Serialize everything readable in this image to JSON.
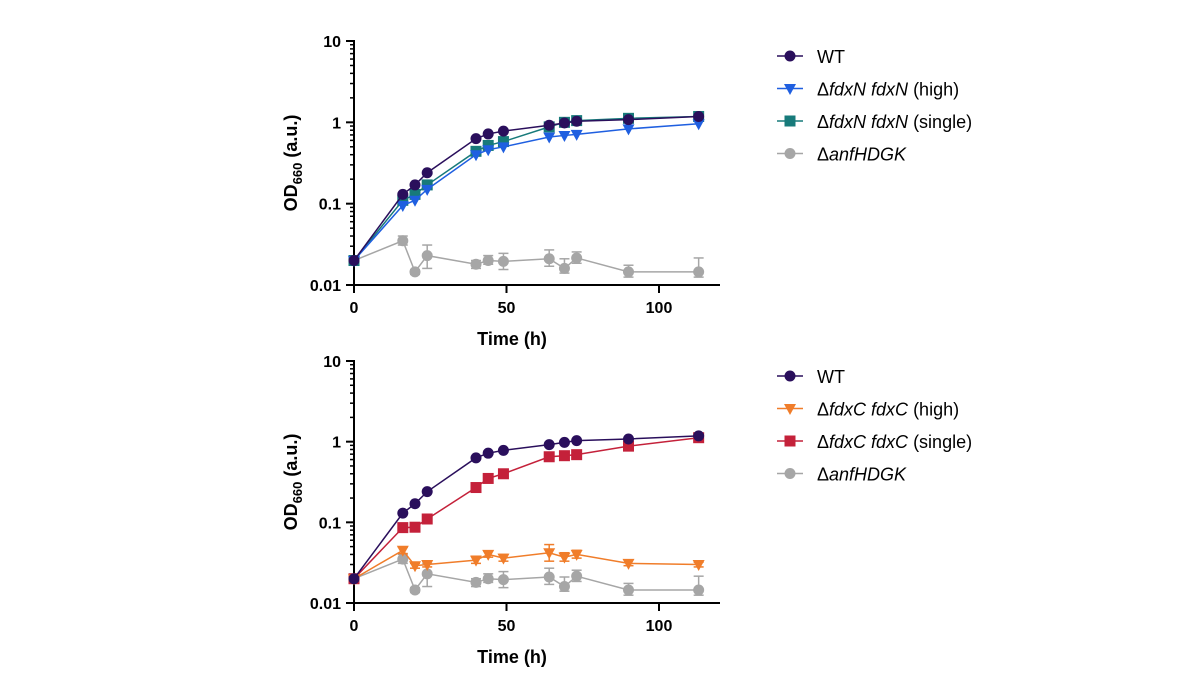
{
  "chart_data": [
    {
      "type": "line",
      "xlabel": "Time (h)",
      "ylabel": {
        "main": "OD",
        "sub": "660",
        "suffix": " (a.u.)"
      },
      "xscale": "linear",
      "yscale": "log",
      "xlim": [
        0,
        120
      ],
      "ylim": [
        0.01,
        10
      ],
      "xticks": [
        0,
        50,
        100
      ],
      "yticks": [
        0.01,
        0.1,
        1,
        10
      ],
      "ytick_labels": [
        "0.01",
        "0.1",
        "1",
        "10"
      ],
      "legend_position": "right",
      "series": [
        {
          "name": "WT",
          "legend": [
            {
              "text": "WT",
              "italic": false
            }
          ],
          "color": "#2a0f5c",
          "marker": "circle",
          "x": [
            0,
            16,
            20,
            24,
            40,
            44,
            49,
            64,
            69,
            73,
            90,
            113
          ],
          "y": [
            0.02,
            0.13,
            0.17,
            0.24,
            0.63,
            0.72,
            0.78,
            0.92,
            0.98,
            1.03,
            1.08,
            1.18
          ],
          "err": []
        },
        {
          "name": "ΔfdxN fdxN (high)",
          "legend": [
            {
              "text": "Δ",
              "italic": false
            },
            {
              "text": "fdxN fdxN",
              "italic": true
            },
            {
              "text": " (high)",
              "italic": false
            }
          ],
          "color": "#1f5fe0",
          "marker": "triangle-down",
          "x": [
            0,
            16,
            20,
            24,
            40,
            44,
            49,
            64,
            69,
            73,
            90,
            113
          ],
          "y": [
            0.02,
            0.095,
            0.11,
            0.15,
            0.4,
            0.46,
            0.5,
            0.66,
            0.69,
            0.71,
            0.83,
            0.96
          ],
          "err": []
        },
        {
          "name": "ΔfdxN fdxN (single)",
          "legend": [
            {
              "text": "Δ",
              "italic": false
            },
            {
              "text": "fdxN fdxN",
              "italic": true
            },
            {
              "text": " (single)",
              "italic": false
            }
          ],
          "color": "#177a7a",
          "marker": "square",
          "x": [
            0,
            16,
            20,
            24,
            40,
            44,
            49,
            64,
            69,
            73,
            90,
            113
          ],
          "y": [
            0.02,
            0.11,
            0.13,
            0.17,
            0.44,
            0.52,
            0.58,
            0.88,
            1.0,
            1.05,
            1.12,
            1.18
          ],
          "err": []
        },
        {
          "name": "ΔanfHDGK",
          "legend": [
            {
              "text": "Δ",
              "italic": false
            },
            {
              "text": "anfHDGK",
              "italic": true
            }
          ],
          "color": "#a6a6a6",
          "marker": "circle",
          "x": [
            0,
            16,
            20,
            24,
            40,
            44,
            49,
            64,
            69,
            73,
            90,
            113
          ],
          "y": [
            0.02,
            0.035,
            0.0145,
            0.023,
            0.018,
            0.02,
            0.0195,
            0.021,
            0.016,
            0.0215,
            0.0145,
            0.0145
          ],
          "err": [
            [
              0,
              0
            ],
            [
              0.004,
              0.005
            ],
            [
              0.001,
              0.001
            ],
            [
              0.007,
              0.008
            ],
            [
              0.002,
              0.002
            ],
            [
              0.002,
              0.003
            ],
            [
              0.004,
              0.005
            ],
            [
              0.004,
              0.006
            ],
            [
              0.002,
              0.005
            ],
            [
              0.003,
              0.004
            ],
            [
              0.002,
              0.003
            ],
            [
              0.002,
              0.007
            ]
          ]
        }
      ]
    },
    {
      "type": "line",
      "xlabel": "Time (h)",
      "ylabel": {
        "main": "OD",
        "sub": "660",
        "suffix": " (a.u.)"
      },
      "xscale": "linear",
      "yscale": "log",
      "xlim": [
        0,
        120
      ],
      "ylim": [
        0.01,
        10
      ],
      "xticks": [
        0,
        50,
        100
      ],
      "yticks": [
        0.01,
        0.1,
        1,
        10
      ],
      "ytick_labels": [
        "0.01",
        "0.1",
        "1",
        "10"
      ],
      "legend_position": "right",
      "series": [
        {
          "name": "WT",
          "legend": [
            {
              "text": "WT",
              "italic": false
            }
          ],
          "color": "#2a0f5c",
          "marker": "circle",
          "x": [
            0,
            16,
            20,
            24,
            40,
            44,
            49,
            64,
            69,
            73,
            90,
            113
          ],
          "y": [
            0.02,
            0.13,
            0.17,
            0.24,
            0.63,
            0.72,
            0.78,
            0.92,
            0.98,
            1.03,
            1.08,
            1.18
          ],
          "err": []
        },
        {
          "name": "ΔfdxC fdxC (high)",
          "legend": [
            {
              "text": "Δ",
              "italic": false
            },
            {
              "text": "fdxC fdxC",
              "italic": true
            },
            {
              "text": " (high)",
              "italic": false
            }
          ],
          "color": "#f07d2a",
          "marker": "triangle-down",
          "x": [
            0,
            16,
            20,
            24,
            40,
            44,
            49,
            64,
            69,
            73,
            90,
            113
          ],
          "y": [
            0.02,
            0.045,
            0.029,
            0.03,
            0.034,
            0.04,
            0.036,
            0.042,
            0.037,
            0.04,
            0.031,
            0.03
          ],
          "err": [
            [
              0,
              0
            ],
            [
              0.004,
              0.004
            ],
            [
              0.002,
              0.002
            ],
            [
              0.002,
              0.003
            ],
            [
              0.003,
              0.004
            ],
            [
              0.003,
              0.004
            ],
            [
              0.003,
              0.004
            ],
            [
              0.009,
              0.011
            ],
            [
              0.004,
              0.005
            ],
            [
              0.004,
              0.005
            ],
            [
              0.002,
              0.003
            ],
            [
              0.002,
              0.002
            ]
          ]
        },
        {
          "name": "ΔfdxC fdxC (single)",
          "legend": [
            {
              "text": "Δ",
              "italic": false
            },
            {
              "text": "fdxC fdxC",
              "italic": true
            },
            {
              "text": " (single)",
              "italic": false
            }
          ],
          "color": "#c4213a",
          "marker": "square",
          "x": [
            0,
            16,
            20,
            24,
            40,
            44,
            49,
            64,
            69,
            73,
            90,
            113
          ],
          "y": [
            0.02,
            0.086,
            0.087,
            0.11,
            0.27,
            0.35,
            0.4,
            0.65,
            0.67,
            0.69,
            0.88,
            1.12
          ],
          "err": []
        },
        {
          "name": "ΔanfHDGK",
          "legend": [
            {
              "text": "Δ",
              "italic": false
            },
            {
              "text": "anfHDGK",
              "italic": true
            }
          ],
          "color": "#a6a6a6",
          "marker": "circle",
          "x": [
            0,
            16,
            20,
            24,
            40,
            44,
            49,
            64,
            69,
            73,
            90,
            113
          ],
          "y": [
            0.02,
            0.035,
            0.0145,
            0.023,
            0.018,
            0.02,
            0.0195,
            0.021,
            0.016,
            0.0215,
            0.0145,
            0.0145
          ],
          "err": [
            [
              0,
              0
            ],
            [
              0.004,
              0.005
            ],
            [
              0.001,
              0.001
            ],
            [
              0.007,
              0.008
            ],
            [
              0.002,
              0.002
            ],
            [
              0.002,
              0.003
            ],
            [
              0.004,
              0.005
            ],
            [
              0.004,
              0.006
            ],
            [
              0.002,
              0.005
            ],
            [
              0.003,
              0.004
            ],
            [
              0.002,
              0.003
            ],
            [
              0.002,
              0.007
            ]
          ]
        }
      ]
    }
  ]
}
